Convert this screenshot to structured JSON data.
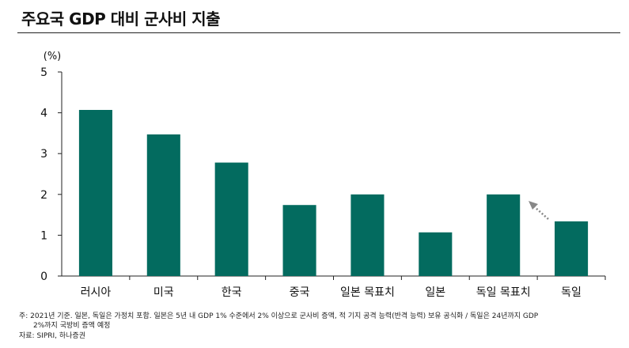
{
  "title": "주요국 GDP 대비 군사비 지출",
  "chart_data": {
    "type": "bar",
    "unit_label": "(%)",
    "categories": [
      "러시아",
      "미국",
      "한국",
      "중국",
      "일본 목표치",
      "일본",
      "독일 목표치",
      "독일"
    ],
    "values": [
      4.07,
      3.47,
      2.78,
      1.74,
      2.0,
      1.07,
      2.0,
      1.34
    ],
    "ylim": [
      0,
      5
    ],
    "yticks": [
      "0",
      "1",
      "2",
      "3",
      "4",
      "5"
    ],
    "bar_color": "#036b5f",
    "grid": false,
    "annotation": "dotted arrow from 독일 to 독일 목표치"
  },
  "notes": {
    "line1": "주: 2021년 기준. 일본, 독일은 가정치 포함. 일본은 5년 내 GDP 1% 수준에서 2% 이상으로 군사비 증액, 적 기지 공격 능력(반격 능력) 보유 공식화 / 독일은 24년까지 GDP",
    "line2": "2%까지 국방비 증액 예정",
    "source": "자료: SIPRI, 하나증권"
  }
}
